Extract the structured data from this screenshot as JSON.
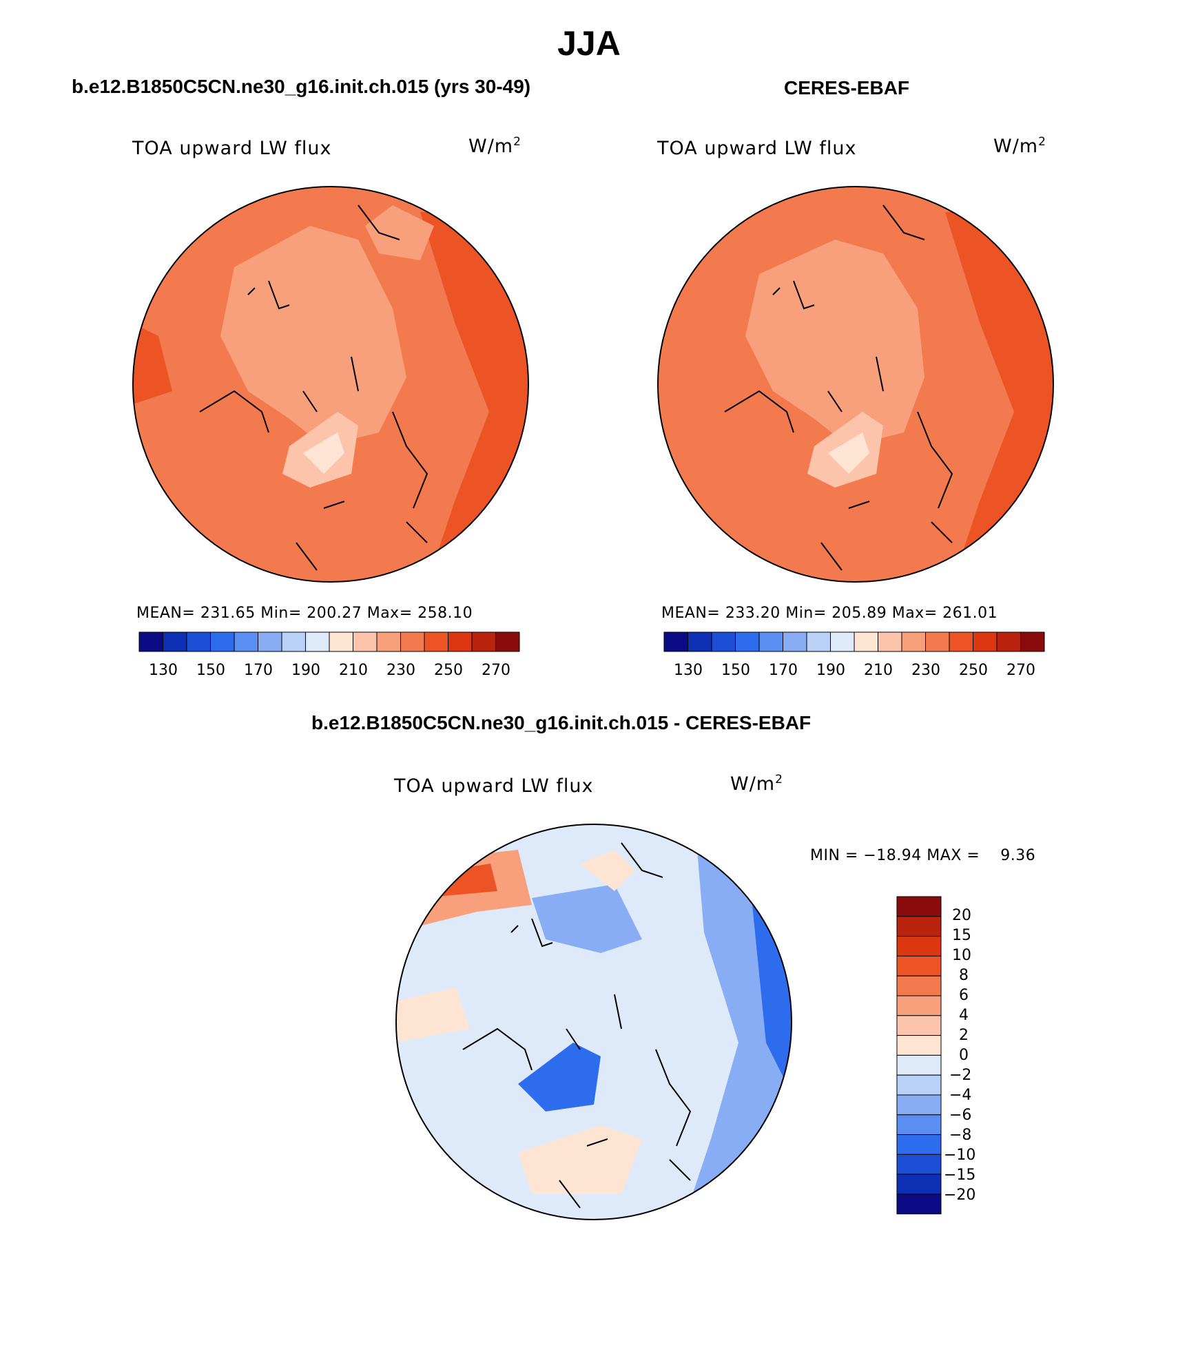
{
  "title": "JJA",
  "colors": {
    "abs_palette": [
      "#0b0b86",
      "#0c2fb4",
      "#1d4fd6",
      "#2e6cee",
      "#5a8ef2",
      "#89adf4",
      "#b9d0f7",
      "#deeaf9",
      "#fde4d3",
      "#fcc5ab",
      "#f8a07c",
      "#f37a4f",
      "#ec5426",
      "#dc3710",
      "#ba240e",
      "#8a0b0b"
    ],
    "diff_palette": [
      "#0b0b86",
      "#0c2fb4",
      "#1d4fd6",
      "#2e6cee",
      "#5a8ef2",
      "#89adf4",
      "#b9d0f7",
      "#deeaf9",
      "#fde4d3",
      "#fcc5ab",
      "#f8a07c",
      "#f37a4f",
      "#ec5426",
      "#dc3710",
      "#ba240e",
      "#8a0b0b"
    ]
  },
  "panels": {
    "model": {
      "title": "b.e12.B1850C5CN.ne30_g16.init.ch.015 (yrs 30-49)",
      "variable": "TOA upward LW flux",
      "units": "W/m",
      "units_exp": "2",
      "stats": "MEAN= 231.65   Min= 200.27   Max= 258.10"
    },
    "obs": {
      "title": "CERES-EBAF",
      "variable": "TOA upward LW flux",
      "units": "W/m",
      "units_exp": "2",
      "stats": "MEAN= 233.20   Min= 205.89   Max= 261.01"
    },
    "diff": {
      "title": "b.e12.B1850C5CN.ne30_g16.init.ch.015 - CERES-EBAF",
      "variable": "TOA upward LW flux",
      "units": "W/m",
      "units_exp": "2",
      "stats": "MIN = −18.94 MAX =    9.36"
    }
  },
  "chart_data": [
    {
      "type": "heatmap",
      "projection": "north polar stereographic",
      "title": "b.e12.B1850C5CN.ne30_g16.init.ch.015 (yrs 30-49)",
      "variable": "TOA upward LW flux",
      "units": "W/m2",
      "mean": 231.65,
      "min": 200.27,
      "max": 258.1,
      "colorbar_ticks": [
        "130",
        "150",
        "170",
        "190",
        "210",
        "230",
        "250",
        "270"
      ]
    },
    {
      "type": "heatmap",
      "projection": "north polar stereographic",
      "title": "CERES-EBAF",
      "variable": "TOA upward LW flux",
      "units": "W/m2",
      "mean": 233.2,
      "min": 205.89,
      "max": 261.01,
      "colorbar_ticks": [
        "130",
        "150",
        "170",
        "190",
        "210",
        "230",
        "250",
        "270"
      ]
    },
    {
      "type": "heatmap",
      "projection": "north polar stereographic",
      "title": "b.e12.B1850C5CN.ne30_g16.init.ch.015 - CERES-EBAF",
      "variable": "TOA upward LW flux",
      "units": "W/m2",
      "min": -18.94,
      "max": 9.36,
      "colorbar_levels": [
        "20",
        "15",
        "10",
        "8",
        "6",
        "4",
        "2",
        "0",
        "−2",
        "−4",
        "−6",
        "−8",
        "−10",
        "−15",
        "−20"
      ]
    }
  ]
}
